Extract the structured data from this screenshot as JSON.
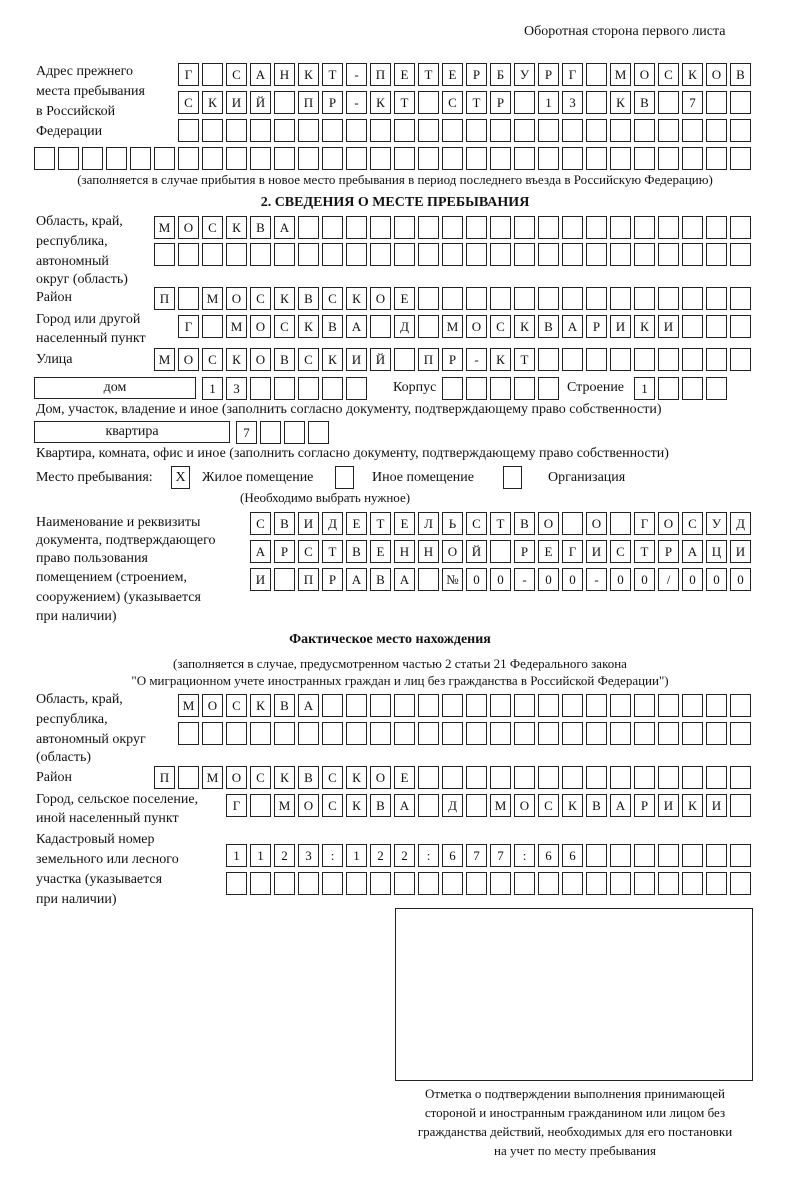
{
  "header": "Оборотная сторона первого листа",
  "prev_address": {
    "label": [
      "Адрес прежнего",
      "места пребывания",
      "в Российской",
      "Федерации"
    ],
    "rows": [
      "Г САНКТ-ПЕТЕРБУРГ МОСКОВ",
      "СКИЙ ПР-КТ СТР 13 КВ 7  ",
      "                        ",
      "                              "
    ],
    "note": "(заполняется в случае прибытия в новое место пребывания в период последнего въезда в Российскую Федерацию)"
  },
  "section2": {
    "title": "2. СВЕДЕНИЯ О МЕСТЕ ПРЕБЫВАНИЯ",
    "region_label": [
      "Область, край,",
      "республика,",
      "автономный",
      "округ (область)"
    ],
    "region_rows": [
      "МОСКВА                   ",
      "                         "
    ],
    "district_label": "Район",
    "district": "П МОСКВСКОЕ              ",
    "city_label": [
      "Город или другой",
      "населенный пункт"
    ],
    "city": "Г МОСКВА Д МОСКВАРИКИ   ",
    "street_label": "Улица",
    "street": "МОСКОВСКИЙ ПР-КТ         ",
    "house_type": "дом",
    "house": "13     ",
    "korpus_label": "Корпус",
    "korpus": "     ",
    "building_label": "Строение",
    "building": "1   ",
    "house_note": "Дом, участок, владение и иное (заполнить согласно документу, подтверждающему право собственности)",
    "flat_type": "квартира",
    "flat": "7   ",
    "flat_note": "Квартира, комната, офис и иное (заполнить согласно документу, подтверждающему право собственности)",
    "stay_label": "Место пребывания:",
    "options": [
      {
        "label": "Жилое помещение",
        "mark": "X"
      },
      {
        "label": "Иное помещение",
        "mark": ""
      },
      {
        "label": "Организация",
        "mark": ""
      }
    ],
    "choose_note": "(Необходимо выбрать нужное)",
    "doc_label": [
      "Наименование и реквизиты",
      "документа, подтверждающего",
      "право пользования",
      "помещением (строением,",
      "сооружением) (указывается",
      "при наличии)"
    ],
    "doc_rows": [
      "СВИДЕТЕЛЬСТВО О ГОСУД",
      "АРСТВЕННОЙ РЕГИСТРАЦИ",
      "И ПРАВА №00-00-00/000"
    ]
  },
  "actual": {
    "title": "Фактическое место нахождения",
    "note": [
      "(заполняется в случае, предусмотренном частью 2 статьи 21 Федерального закона",
      "\"О миграционном учете иностранных граждан и лиц без гражданства в Российской Федерации\")"
    ],
    "region_label": [
      "Область, край,",
      "республика,",
      "автономный округ",
      "(область)"
    ],
    "region_rows": [
      "МОСКВА                  ",
      "                        "
    ],
    "district_label": "Район",
    "district": "П МОСКВСКОЕ              ",
    "city_label": [
      "Город, сельское поселение,",
      "иной населенный пункт"
    ],
    "city": "Г МОСКВА Д МОСКВАРИКИ ",
    "cadastral_label": [
      "Кадастровый номер",
      "земельного или лесного",
      "участка (указывается",
      "при наличии)"
    ],
    "cadastral_rows": [
      "1123:122:677:66       ",
      "                      "
    ]
  },
  "stamp_caption": [
    "Отметка о подтверждении выполнения принимающей",
    "стороной и иностранным гражданином или лицом без",
    "гражданства действий, необходимых для его постановки",
    "на учет по месту пребывания"
  ]
}
